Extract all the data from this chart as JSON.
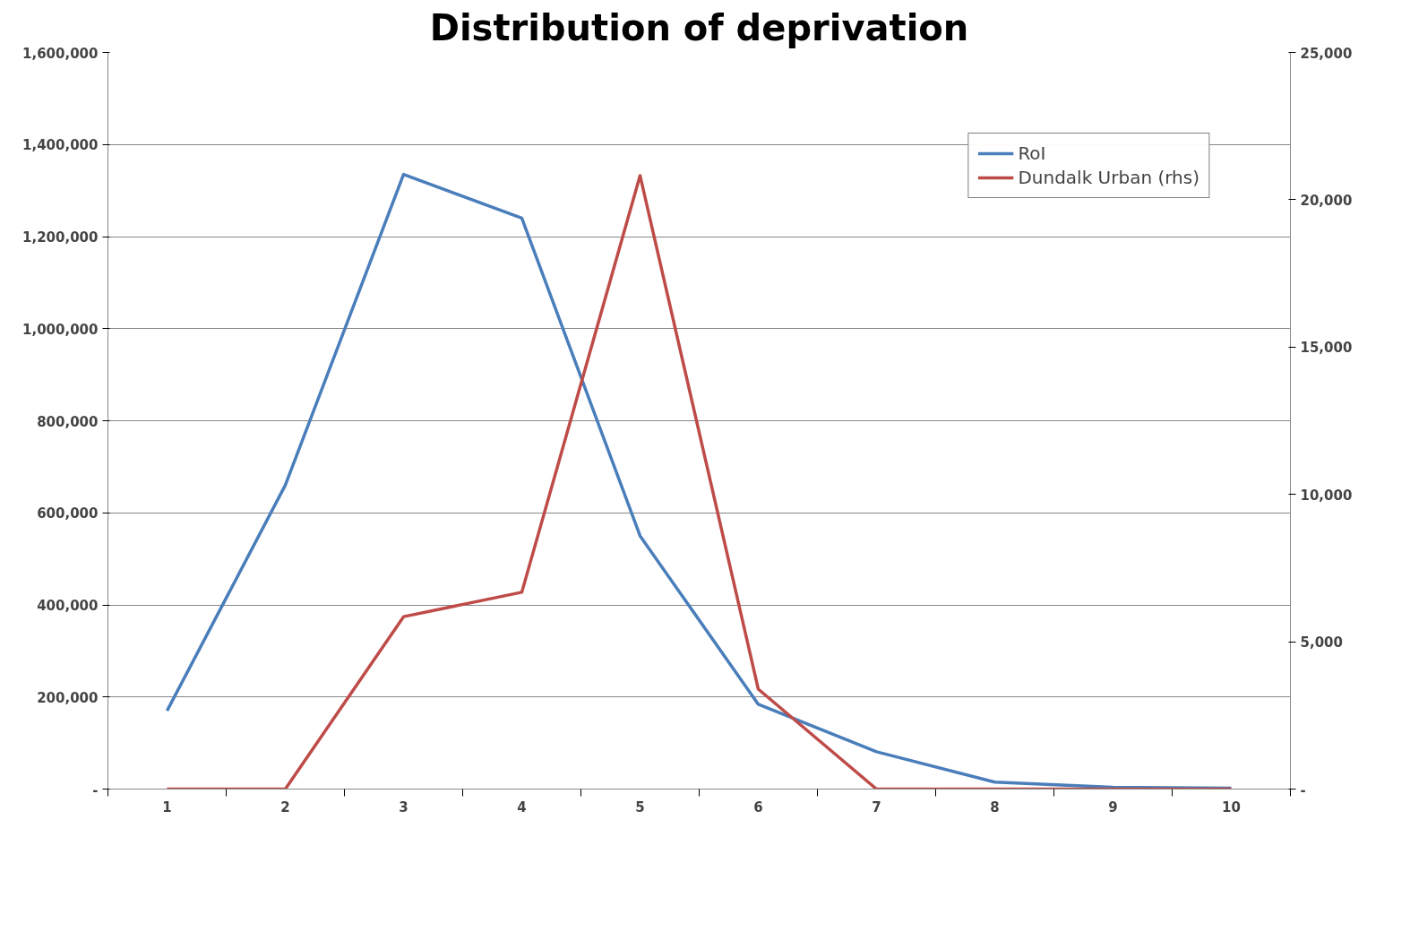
{
  "chart_data": {
    "type": "line",
    "title": "Distribution of deprivation",
    "categories": [
      "1",
      "2",
      "3",
      "4",
      "5",
      "6",
      "7",
      "8",
      "9",
      "10"
    ],
    "series": [
      {
        "name": "RoI",
        "color": "#4a7ebb",
        "values": [
          170000,
          660000,
          1335000,
          1240000,
          550000,
          184000,
          81000,
          15000,
          4000,
          2000
        ]
      },
      {
        "name": "Dundalk Urban (rhs)",
        "color": "#be4b48",
        "axis": "y2",
        "values": [
          0,
          0,
          5850,
          6680,
          20820,
          3390,
          0,
          0,
          0,
          0
        ]
      }
    ],
    "ylim": [
      0,
      1600000
    ],
    "yticks": [
      {
        "value": 0,
        "label": "-"
      },
      {
        "value": 200000,
        "label": "200,000"
      },
      {
        "value": 400000,
        "label": "400,000"
      },
      {
        "value": 600000,
        "label": "600,000"
      },
      {
        "value": 800000,
        "label": "800,000"
      },
      {
        "value": 1000000,
        "label": "1,000,000"
      },
      {
        "value": 1200000,
        "label": "1,200,000"
      },
      {
        "value": 1400000,
        "label": "1,400,000"
      },
      {
        "value": 1600000,
        "label": "1,600,000"
      }
    ],
    "y2lim": [
      0,
      25000
    ],
    "y2ticks": [
      {
        "value": 0,
        "label": "-"
      },
      {
        "value": 5000,
        "label": "5,000"
      },
      {
        "value": 10000,
        "label": "10,000"
      },
      {
        "value": 15000,
        "label": "15,000"
      },
      {
        "value": 20000,
        "label": "20,000"
      },
      {
        "value": 25000,
        "label": "25,000"
      }
    ],
    "grid": "y",
    "legend": "top right",
    "marker": "none",
    "line_style": "solid"
  }
}
